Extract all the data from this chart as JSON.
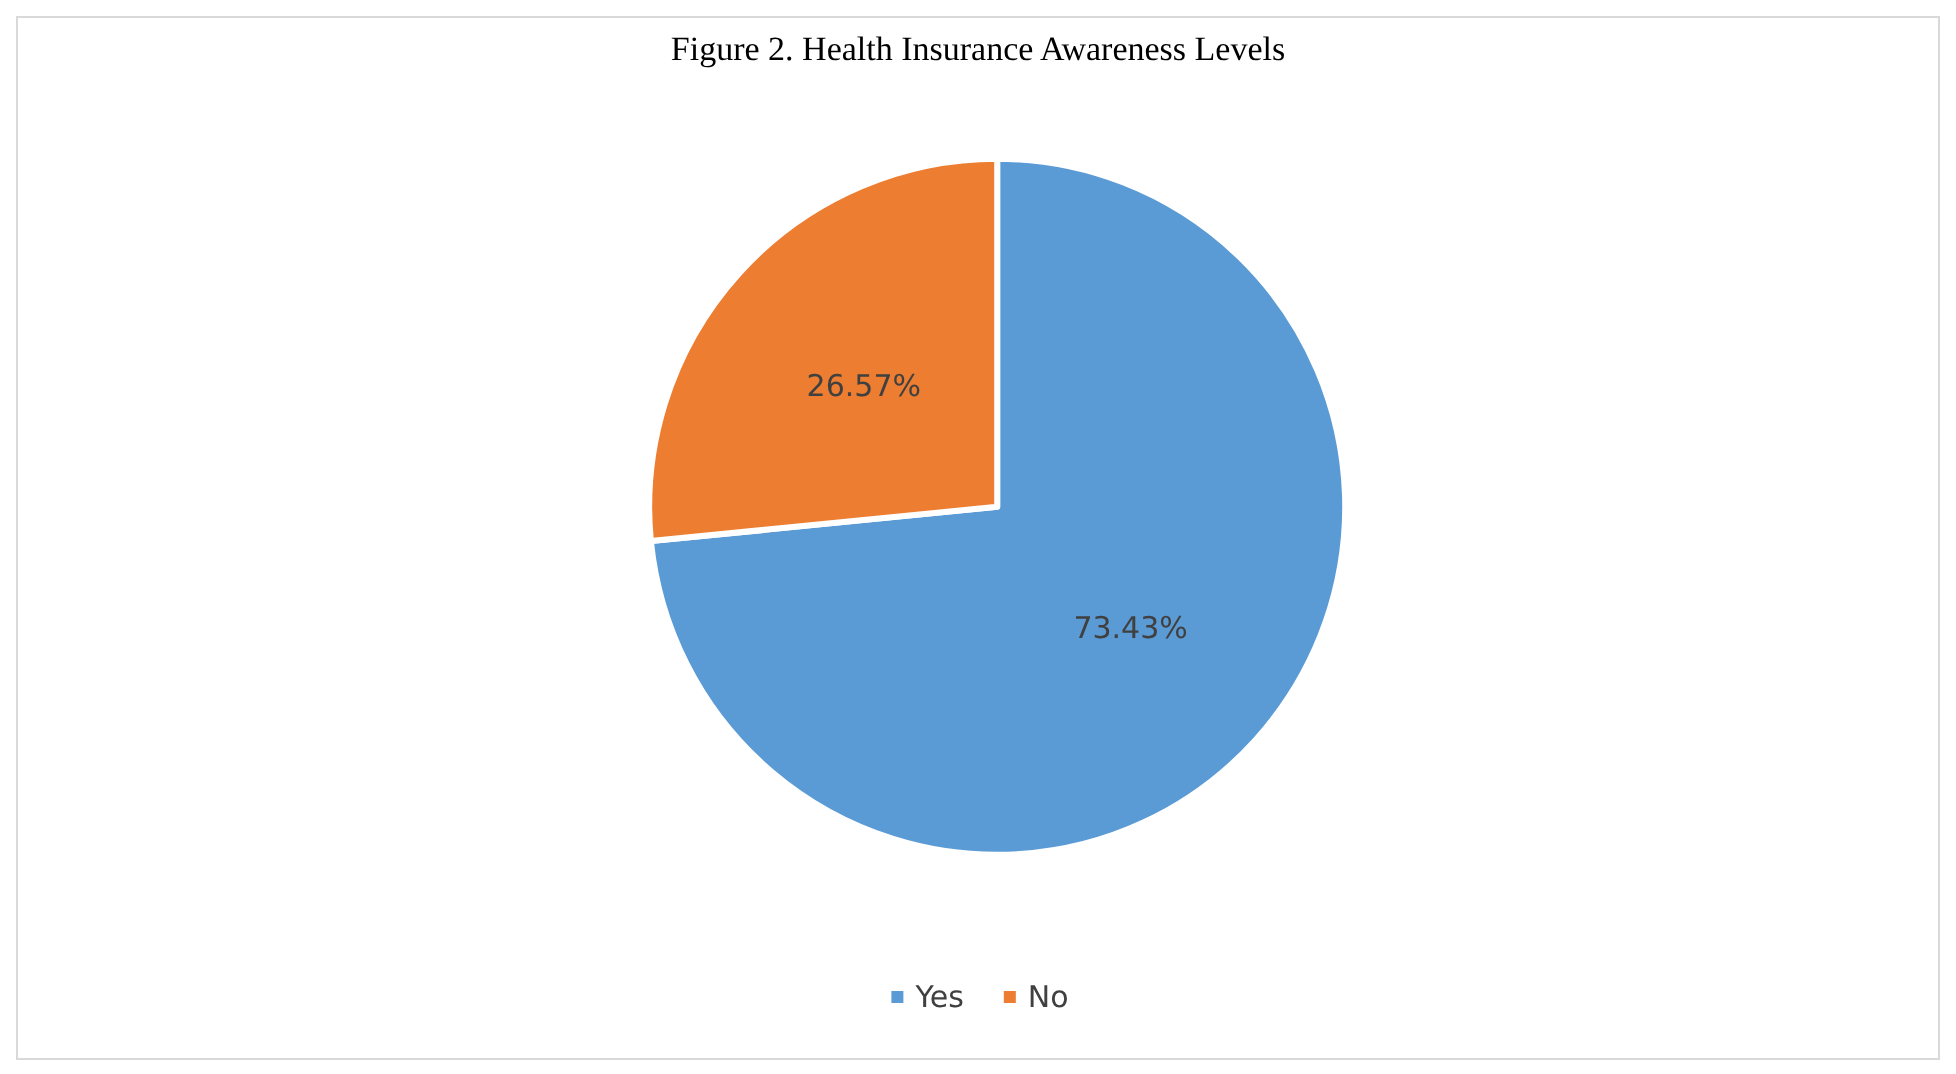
{
  "chart_data": {
    "type": "pie",
    "title": "Figure 2. Health Insurance Awareness Levels",
    "categories": [
      "Yes",
      "No"
    ],
    "values": [
      73.43,
      26.57
    ],
    "colors": [
      "#5b9bd5",
      "#ed7d31"
    ],
    "value_labels": [
      "73.43%",
      "26.57%"
    ],
    "legend": "bottom"
  }
}
